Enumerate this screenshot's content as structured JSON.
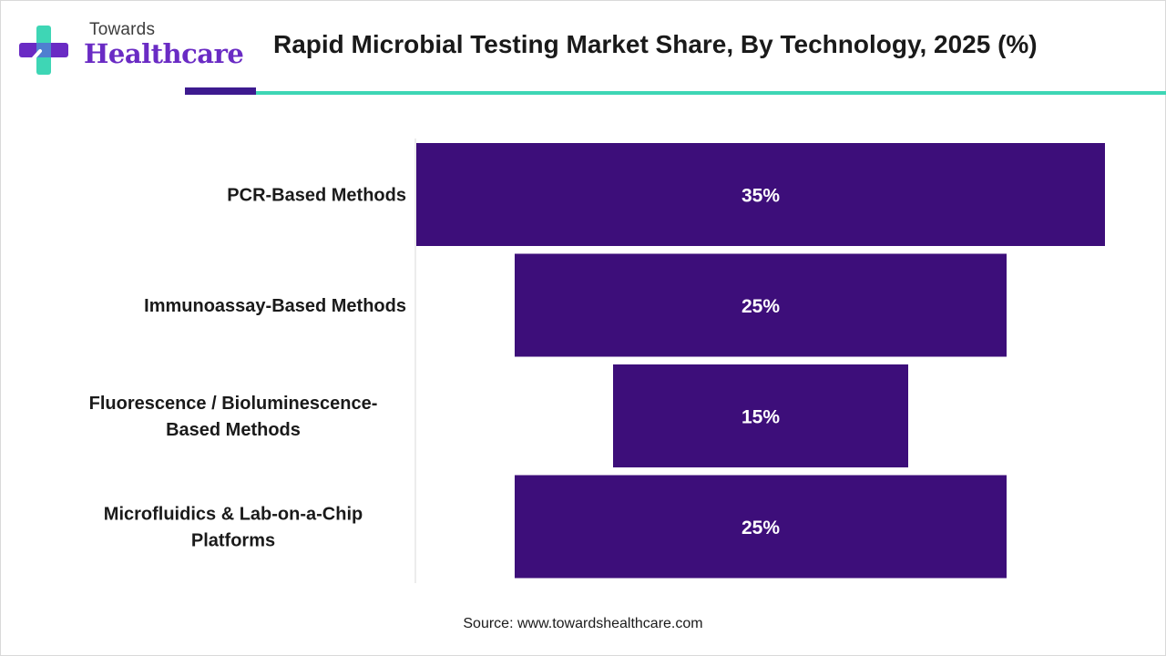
{
  "logo": {
    "line1": "Towards",
    "line2": "Healthcare"
  },
  "title": "Rapid Microbial Testing Market Share, By Technology, 2025 (%)",
  "source": "Source: www.towardshealthcare.com",
  "colors": {
    "bar": "#3d0e7a",
    "accent_dark": "#3d1a8f",
    "accent_teal": "#3ed6b5",
    "logo_purple": "#6a2bc4"
  },
  "chart_data": {
    "type": "bar",
    "orientation": "horizontal-centered",
    "title": "Rapid Microbial Testing Market Share, By Technology, 2025 (%)",
    "categories": [
      [
        "PCR-Based Methods"
      ],
      [
        "Immunoassay-Based Methods"
      ],
      [
        "Fluorescence / Bioluminescence-",
        "Based Methods"
      ],
      [
        "Microfluidics & Lab-on-a-Chip",
        "Platforms"
      ]
    ],
    "values": [
      35,
      25,
      15,
      25
    ],
    "data_labels": [
      "35%",
      "25%",
      "15%",
      "25%"
    ],
    "unit": "%",
    "xlabel": "",
    "ylabel": "",
    "xlim": [
      0,
      35
    ],
    "grid": false,
    "legend": "none"
  }
}
